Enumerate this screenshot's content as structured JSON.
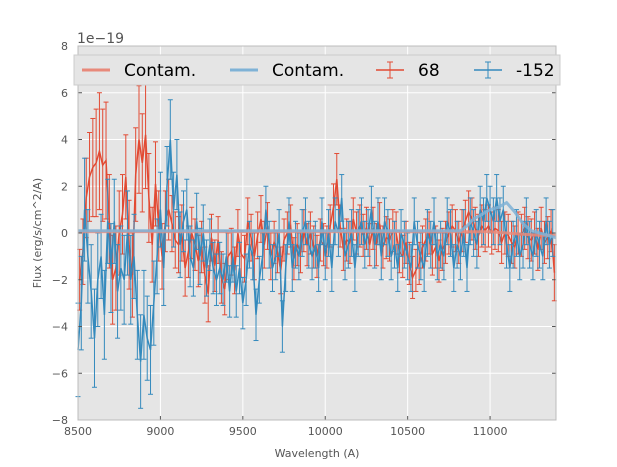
{
  "chart_data": {
    "type": "line",
    "title": "",
    "xlabel": "Wavelength (A)",
    "ylabel": "Flux (erg/s/cm^2/A)",
    "xlim": [
      8500,
      11400
    ],
    "ylim": [
      -8,
      8
    ],
    "y_scale_exponent": "1e−19",
    "xticks": [
      8500,
      9000,
      9500,
      10000,
      10500,
      11000
    ],
    "yticks": [
      -8,
      -6,
      -4,
      -2,
      0,
      2,
      4,
      6,
      8
    ],
    "grid": true,
    "legend_position": "top",
    "legend": [
      "Contam.",
      "Contam.",
      "68",
      "-152"
    ],
    "series": [
      {
        "name": "68",
        "color": "#e24a33",
        "x": [
          8510,
          8530,
          8550,
          8570,
          8590,
          8610,
          8630,
          8650,
          8670,
          8690,
          8710,
          8730,
          8750,
          8770,
          8790,
          8810,
          8830,
          8850,
          8870,
          8890,
          8910,
          8930,
          8950,
          8970,
          8990,
          9010,
          9030,
          9050,
          9070,
          9090,
          9110,
          9130,
          9150,
          9170,
          9190,
          9210,
          9230,
          9250,
          9270,
          9290,
          9310,
          9330,
          9350,
          9370,
          9390,
          9410,
          9430,
          9450,
          9470,
          9490,
          9510,
          9530,
          9550,
          9570,
          9590,
          9610,
          9630,
          9650,
          9670,
          9690,
          9710,
          9730,
          9750,
          9770,
          9790,
          9810,
          9830,
          9850,
          9870,
          9890,
          9910,
          9930,
          9950,
          9970,
          9990,
          10010,
          10030,
          10050,
          10070,
          10090,
          10110,
          10130,
          10150,
          10170,
          10190,
          10210,
          10230,
          10250,
          10270,
          10290,
          10310,
          10330,
          10350,
          10370,
          10390,
          10410,
          10430,
          10450,
          10470,
          10490,
          10510,
          10530,
          10550,
          10570,
          10590,
          10610,
          10630,
          10650,
          10670,
          10690,
          10710,
          10730,
          10750,
          10770,
          10790,
          10810,
          10830,
          10850,
          10870,
          10890,
          10910,
          10930,
          10950,
          10970,
          10990,
          11010,
          11030,
          11050,
          11070,
          11090,
          11110,
          11130,
          11150,
          11170,
          11190,
          11210,
          11230,
          11250,
          11270,
          11290,
          11310,
          11330,
          11350,
          11370,
          11390
        ],
        "y": [
          -2.0,
          -0.8,
          1.5,
          2.4,
          2.8,
          3.0,
          3.5,
          2.9,
          3.1,
          0.5,
          -2.0,
          -1.5,
          0.0,
          0.8,
          2.4,
          -0.5,
          -1.8,
          2.5,
          4.0,
          3.0,
          4.2,
          1.5,
          -0.5,
          2.1,
          0.3,
          -1.0,
          0.5,
          1.0,
          0.4,
          -0.3,
          -0.5,
          0.0,
          -1.5,
          -0.8,
          0.0,
          -0.5,
          -1.2,
          -0.6,
          -1.8,
          -2.6,
          -0.2,
          -1.4,
          -0.3,
          -1.9,
          -2.4,
          -1.0,
          -0.8,
          -1.6,
          0.0,
          -0.9,
          -1.1,
          0.5,
          -0.2,
          -1.0,
          -0.1,
          0.6,
          -0.5,
          0.3,
          -1.0,
          -0.4,
          -0.8,
          -1.6,
          -0.3,
          0.0,
          0.3,
          -1.1,
          -0.5,
          -0.8,
          0.1,
          -0.5,
          0.0,
          -0.6,
          -1.0,
          -0.3,
          -0.5,
          -0.6,
          0.3,
          1.1,
          2.3,
          0.3,
          -0.7,
          -0.3,
          -0.4,
          0.6,
          0.0,
          0.3,
          -0.1,
          0.2,
          -0.5,
          0.2,
          -0.5,
          0.4,
          -0.6,
          -0.2,
          -0.3,
          0.1,
          0.0,
          -0.8,
          -1.0,
          -0.4,
          -1.3,
          -1.9,
          -1.6,
          -1.3,
          -0.6,
          -0.3,
          0.0,
          -0.9,
          -0.6,
          -1.2,
          -0.7,
          -0.4,
          0.0,
          0.3,
          0.1,
          -0.4,
          0.1,
          0.5,
          0.9,
          0.6,
          0.2,
          -0.1,
          0.3,
          0.1,
          0.3,
          0.0,
          0.2,
          0.1,
          -0.4,
          0.0,
          -0.1,
          -0.4,
          -0.6,
          0.0,
          -0.1,
          0.2,
          -0.2,
          -0.3,
          0.0,
          -0.7,
          0.2,
          -0.4,
          -0.2,
          0.1,
          -1.7
        ],
        "err": [
          1.3,
          1.4,
          1.7,
          1.9,
          2.1,
          2.3,
          2.5,
          2.4,
          2.5,
          2.0,
          1.9,
          1.8,
          1.8,
          1.7,
          1.8,
          1.9,
          1.8,
          2.0,
          2.3,
          2.1,
          2.3,
          1.9,
          1.6,
          1.8,
          1.5,
          1.4,
          1.3,
          1.3,
          1.2,
          1.2,
          1.2,
          1.2,
          1.2,
          1.1,
          1.1,
          1.1,
          1.1,
          1.1,
          1.2,
          1.2,
          1.0,
          1.1,
          1.0,
          1.1,
          1.1,
          1.0,
          1.0,
          1.0,
          1.0,
          1.0,
          1.0,
          1.0,
          1.0,
          1.0,
          1.0,
          1.0,
          1.0,
          1.0,
          1.0,
          0.9,
          0.9,
          1.0,
          0.9,
          0.9,
          0.9,
          0.9,
          0.9,
          0.9,
          0.9,
          0.9,
          0.9,
          0.9,
          0.9,
          0.9,
          0.9,
          0.9,
          0.9,
          1.0,
          1.1,
          0.9,
          0.9,
          0.9,
          0.9,
          0.9,
          0.9,
          0.9,
          0.9,
          0.9,
          0.9,
          0.9,
          0.9,
          0.9,
          0.9,
          0.9,
          0.9,
          0.9,
          0.9,
          0.9,
          0.9,
          0.9,
          0.9,
          0.9,
          0.9,
          0.9,
          0.9,
          0.9,
          0.9,
          0.9,
          0.9,
          0.9,
          0.9,
          0.9,
          0.9,
          0.9,
          0.9,
          0.9,
          0.9,
          0.9,
          0.9,
          0.9,
          0.9,
          0.9,
          0.9,
          0.9,
          0.9,
          0.9,
          0.9,
          0.9,
          0.9,
          0.9,
          0.9,
          0.9,
          0.9,
          0.9,
          0.9,
          0.9,
          0.9,
          0.9,
          0.9,
          0.9,
          0.9,
          0.9,
          0.9,
          0.9,
          1.2
        ]
      },
      {
        "name": "-152",
        "color": "#348abd",
        "x": [
          8500,
          8520,
          8540,
          8560,
          8580,
          8600,
          8620,
          8640,
          8660,
          8680,
          8700,
          8720,
          8740,
          8760,
          8780,
          8800,
          8820,
          8840,
          8860,
          8880,
          8900,
          8920,
          8940,
          8960,
          8980,
          9000,
          9020,
          9040,
          9060,
          9080,
          9100,
          9120,
          9140,
          9160,
          9180,
          9200,
          9220,
          9240,
          9260,
          9280,
          9300,
          9320,
          9340,
          9360,
          9380,
          9400,
          9420,
          9440,
          9460,
          9480,
          9500,
          9520,
          9540,
          9560,
          9580,
          9600,
          9620,
          9640,
          9660,
          9680,
          9700,
          9720,
          9740,
          9760,
          9780,
          9800,
          9820,
          9840,
          9860,
          9880,
          9900,
          9920,
          9940,
          9960,
          9980,
          10000,
          10020,
          10040,
          10060,
          10080,
          10100,
          10120,
          10140,
          10160,
          10180,
          10200,
          10220,
          10240,
          10260,
          10280,
          10300,
          10320,
          10340,
          10360,
          10380,
          10400,
          10420,
          10440,
          10460,
          10480,
          10500,
          10520,
          10540,
          10560,
          10580,
          10600,
          10620,
          10640,
          10660,
          10680,
          10700,
          10720,
          10740,
          10760,
          10780,
          10800,
          10820,
          10840,
          10860,
          10880,
          10900,
          10920,
          10940,
          10960,
          10980,
          11000,
          11020,
          11040,
          11060,
          11080,
          11100,
          11120,
          11140,
          11160,
          11180,
          11200,
          11220,
          11240,
          11260,
          11280,
          11300,
          11320,
          11340,
          11360,
          11380
        ],
        "y": [
          -5.0,
          -3.0,
          1.0,
          -1.0,
          -2.5,
          -4.5,
          -2.0,
          -1.0,
          -3.5,
          0.5,
          -1.5,
          0.5,
          -2.5,
          -1.5,
          -2.0,
          0.0,
          -2.0,
          -1.0,
          -3.5,
          -5.5,
          -3.5,
          -4.5,
          -5.0,
          -3.0,
          -1.0,
          1.0,
          -1.5,
          2.0,
          4.0,
          1.0,
          2.5,
          -0.5,
          0.5,
          1.0,
          -1.0,
          -1.5,
          0.5,
          -1.0,
          0.0,
          -1.5,
          -0.5,
          -1.5,
          -2.0,
          -1.5,
          -2.0,
          -1.0,
          -2.5,
          -1.0,
          -2.5,
          -1.5,
          -3.0,
          -2.0,
          -0.5,
          -1.0,
          -3.5,
          -2.0,
          -1.0,
          1.0,
          -0.5,
          -1.5,
          -1.0,
          0.0,
          -4.0,
          -1.5,
          0.5,
          -1.5,
          -0.5,
          -1.0,
          0.0,
          0.5,
          -0.5,
          -1.0,
          -0.5,
          -1.5,
          0.5,
          -1.0,
          0.0,
          -1.5,
          0.5,
          0.0,
          1.5,
          -1.0,
          -0.5,
          0.0,
          -1.5,
          0.0,
          0.5,
          -0.5,
          0.0,
          1.0,
          -0.5,
          0.5,
          -1.0,
          0.5,
          0.0,
          -1.0,
          -0.5,
          -1.5,
          0.0,
          -0.5,
          -1.0,
          -1.5,
          0.5,
          -0.5,
          -1.0,
          -1.5,
          0.0,
          -0.5,
          0.5,
          -1.0,
          -0.5,
          -1.0,
          0.5,
          0.0,
          -1.5,
          -0.5,
          -1.0,
          0.0,
          -1.5,
          0.5,
          0.0,
          -0.5,
          1.0,
          0.5,
          1.5,
          1.0,
          0.5,
          1.5,
          0.5,
          1.0,
          -0.5,
          -1.5,
          -0.5,
          0.0,
          -1.0,
          -0.5,
          0.5,
          -0.5,
          -1.0,
          0.0,
          -0.5,
          -1.0,
          0.5,
          -0.5,
          0.0
        ],
        "err": [
          2.0,
          2.0,
          2.2,
          2.0,
          2.0,
          2.1,
          2.0,
          1.8,
          1.9,
          1.8,
          1.9,
          1.8,
          2.0,
          1.8,
          1.9,
          1.8,
          1.9,
          1.8,
          1.9,
          2.0,
          1.9,
          1.8,
          1.9,
          1.8,
          1.6,
          1.6,
          1.6,
          1.7,
          1.7,
          1.6,
          1.5,
          1.4,
          1.3,
          1.3,
          1.3,
          1.2,
          1.2,
          1.2,
          1.2,
          1.2,
          1.1,
          1.1,
          1.1,
          1.1,
          1.1,
          1.1,
          1.1,
          1.1,
          1.1,
          1.1,
          1.1,
          1.1,
          1.0,
          1.0,
          1.1,
          1.0,
          1.0,
          1.0,
          1.0,
          1.0,
          1.0,
          1.0,
          1.1,
          1.0,
          1.0,
          1.0,
          1.0,
          1.0,
          1.0,
          1.0,
          1.0,
          1.0,
          1.0,
          1.0,
          1.0,
          1.0,
          1.0,
          1.0,
          1.0,
          1.0,
          1.0,
          1.0,
          1.0,
          1.0,
          1.0,
          1.0,
          1.0,
          1.0,
          1.0,
          1.0,
          1.0,
          1.0,
          1.0,
          1.0,
          1.0,
          1.0,
          1.0,
          1.0,
          1.0,
          1.0,
          1.0,
          1.0,
          1.0,
          1.0,
          1.0,
          1.0,
          1.0,
          1.0,
          1.0,
          1.0,
          1.0,
          1.0,
          1.0,
          1.0,
          1.0,
          1.0,
          1.0,
          1.0,
          1.0,
          1.0,
          1.0,
          1.0,
          1.0,
          1.0,
          1.0,
          1.0,
          1.0,
          1.0,
          1.0,
          1.0,
          1.0,
          1.0,
          1.0,
          1.0,
          1.0,
          1.0,
          1.0,
          1.0,
          1.0,
          1.0,
          1.0,
          1.0,
          1.0,
          1.0,
          1.0
        ]
      }
    ],
    "contamination": [
      {
        "name": "Contam.",
        "color": "#e8897a",
        "x": [
          8500,
          8700,
          8900,
          9100,
          9300,
          9500,
          9700,
          9900,
          10100,
          10300,
          10500,
          10700,
          10900,
          11000,
          11100,
          11200,
          11300,
          11400
        ],
        "y": [
          0.05,
          0.05,
          0.05,
          0.05,
          0.05,
          0.05,
          0.05,
          0.05,
          0.05,
          0.05,
          0.05,
          0.05,
          0.05,
          0.05,
          0.0,
          -0.05,
          -0.1,
          -0.1
        ]
      },
      {
        "name": "Contam.",
        "color": "#7fb2d6",
        "x": [
          8500,
          8700,
          8900,
          9100,
          9300,
          9500,
          9700,
          9900,
          10100,
          10300,
          10500,
          10700,
          10820,
          10860,
          10900,
          10950,
          11000,
          11050,
          11100,
          11150,
          11200,
          11250,
          11300,
          11350,
          11400
        ],
        "y": [
          0.1,
          0.1,
          0.1,
          0.1,
          0.1,
          0.1,
          0.1,
          0.1,
          0.1,
          0.1,
          0.1,
          0.1,
          0.1,
          0.3,
          0.6,
          0.8,
          1.0,
          1.1,
          1.3,
          0.9,
          0.4,
          0.1,
          0.0,
          -0.1,
          -0.2
        ]
      }
    ]
  }
}
